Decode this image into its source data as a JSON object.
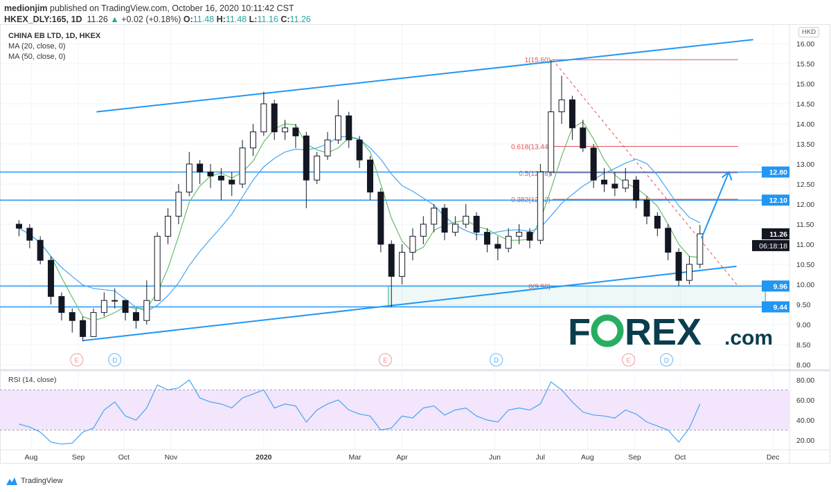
{
  "header": {
    "author": "medionjim",
    "published": "published on TradingView.com, October 16, 2020 10:11:42 CST",
    "symbol": "HKEX_DLY:165, 1D",
    "last": "11.26",
    "change": "+0.02 (+0.18%)",
    "o_label": "O:",
    "o": "11.48",
    "h_label": "H:",
    "h": "11.48",
    "l_label": "L:",
    "l": "11.16",
    "c_label": "C:",
    "c": "11.26"
  },
  "legend": {
    "title": "CHINA EB LTD, 1D, HKEX",
    "ma20": "MA (20, close, 0)",
    "ma50": "MA (50, close, 0)",
    "rsi": "RSI (14, close)"
  },
  "currency": "HKD",
  "footer": {
    "brand": "TradingView"
  },
  "watermark": {
    "brand": "FOREX.com"
  },
  "colors": {
    "up": "#26a69a",
    "candle": "#131722",
    "ma20": "#66bb6a",
    "ma50": "#42a5f5",
    "trendline": "#2196f3",
    "fib": "#e05050",
    "rsi": "#42a5f5",
    "rsi_band": "#f3e5fc",
    "earnings": "#ef9a9a",
    "dividend": "#64b5f6",
    "logo_dark": "#0b3d4c",
    "logo_green": "#27ae60"
  },
  "chart_data": [
    {
      "type": "candlestick",
      "title": "CHINA EB LTD, 1D, HKEX",
      "ylim": [
        8.0,
        16.0
      ],
      "y_ticks": [
        "16.00",
        "15.50",
        "15.00",
        "14.50",
        "14.00",
        "13.50",
        "13.00",
        "12.50",
        "12.00",
        "11.50",
        "11.00",
        "10.50",
        "10.00",
        "9.50",
        "9.00",
        "8.50",
        "8.00"
      ],
      "x_ticks": [
        {
          "label": "Aug",
          "date": "2019-08-01"
        },
        {
          "label": "Sep",
          "date": "2019-09-01"
        },
        {
          "label": "Oct",
          "date": "2019-10-01"
        },
        {
          "label": "Nov",
          "date": "2019-11-01"
        },
        {
          "label": "2020",
          "date": "2020-01-01"
        },
        {
          "label": "Mar",
          "date": "2020-03-01"
        },
        {
          "label": "Apr",
          "date": "2020-04-01"
        },
        {
          "label": "Jun",
          "date": "2020-06-01"
        },
        {
          "label": "Jul",
          "date": "2020-07-01"
        },
        {
          "label": "Aug",
          "date": "2020-08-01"
        },
        {
          "label": "Sep",
          "date": "2020-09-01"
        },
        {
          "label": "Oct",
          "date": "2020-10-01"
        },
        {
          "label": "Dec",
          "date": "2020-12-01"
        }
      ],
      "candles_columns": [
        "date",
        "open",
        "high",
        "low",
        "close"
      ],
      "candles": [
        [
          "2019-07-22",
          11.5,
          11.6,
          11.2,
          11.4
        ],
        [
          "2019-07-29",
          11.4,
          11.5,
          10.9,
          11.1
        ],
        [
          "2019-08-05",
          11.1,
          11.2,
          10.5,
          10.6
        ],
        [
          "2019-08-12",
          10.6,
          10.7,
          9.5,
          9.7
        ],
        [
          "2019-08-19",
          9.7,
          9.8,
          9.1,
          9.3
        ],
        [
          "2019-08-26",
          9.3,
          9.4,
          8.8,
          9.1
        ],
        [
          "2019-09-02",
          9.1,
          9.2,
          8.58,
          8.7
        ],
        [
          "2019-09-09",
          8.7,
          9.4,
          8.7,
          9.3
        ],
        [
          "2019-09-16",
          9.3,
          9.8,
          9.2,
          9.6
        ],
        [
          "2019-09-23",
          9.6,
          9.9,
          9.4,
          9.6
        ],
        [
          "2019-09-30",
          9.6,
          9.6,
          9.1,
          9.3
        ],
        [
          "2019-10-07",
          9.3,
          9.4,
          8.9,
          9.1
        ],
        [
          "2019-10-14",
          9.1,
          10.1,
          9.0,
          9.6
        ],
        [
          "2019-10-21",
          9.6,
          11.3,
          9.6,
          11.2
        ],
        [
          "2019-10-28",
          11.2,
          11.9,
          11.0,
          11.7
        ],
        [
          "2019-11-04",
          11.7,
          12.5,
          11.5,
          12.3
        ],
        [
          "2019-11-11",
          12.3,
          13.3,
          12.2,
          13.0
        ],
        [
          "2019-11-18",
          13.0,
          13.1,
          12.5,
          12.8
        ],
        [
          "2019-11-25",
          12.8,
          13.0,
          12.4,
          12.7
        ],
        [
          "2019-12-02",
          12.7,
          12.9,
          12.1,
          12.6
        ],
        [
          "2019-12-09",
          12.6,
          12.8,
          12.2,
          12.5
        ],
        [
          "2019-12-16",
          12.5,
          13.6,
          12.4,
          13.4
        ],
        [
          "2019-12-23",
          13.4,
          14.0,
          13.2,
          13.8
        ],
        [
          "2019-12-30",
          13.8,
          14.8,
          13.7,
          14.5
        ],
        [
          "2020-01-06",
          14.5,
          14.6,
          13.6,
          13.8
        ],
        [
          "2020-01-13",
          13.8,
          14.1,
          13.6,
          13.9
        ],
        [
          "2020-01-20",
          13.9,
          14.0,
          13.4,
          13.7
        ],
        [
          "2020-01-27",
          13.7,
          13.8,
          11.9,
          12.6
        ],
        [
          "2020-02-03",
          12.6,
          13.3,
          12.5,
          13.2
        ],
        [
          "2020-02-10",
          13.2,
          13.8,
          13.1,
          13.6
        ],
        [
          "2020-02-17",
          13.6,
          14.6,
          13.5,
          14.2
        ],
        [
          "2020-02-24",
          14.2,
          14.3,
          13.4,
          13.6
        ],
        [
          "2020-03-02",
          13.6,
          13.7,
          12.9,
          13.1
        ],
        [
          "2020-03-09",
          13.1,
          13.2,
          12.1,
          12.3
        ],
        [
          "2020-03-16",
          12.3,
          12.4,
          10.8,
          11.0
        ],
        [
          "2020-03-23",
          11.0,
          11.1,
          9.44,
          10.2
        ],
        [
          "2020-03-30",
          10.2,
          11.0,
          10.0,
          10.8
        ],
        [
          "2020-04-06",
          10.8,
          11.4,
          10.6,
          11.2
        ],
        [
          "2020-04-13",
          11.2,
          11.7,
          11.0,
          11.5
        ],
        [
          "2020-04-20",
          11.5,
          12.0,
          11.3,
          11.9
        ],
        [
          "2020-04-27",
          11.9,
          12.0,
          11.1,
          11.3
        ],
        [
          "2020-05-04",
          11.3,
          11.7,
          11.2,
          11.5
        ],
        [
          "2020-05-11",
          11.5,
          12.0,
          11.4,
          11.7
        ],
        [
          "2020-05-18",
          11.7,
          11.8,
          11.1,
          11.3
        ],
        [
          "2020-05-25",
          11.3,
          11.4,
          10.8,
          11.0
        ],
        [
          "2020-06-01",
          11.0,
          11.2,
          10.6,
          10.9
        ],
        [
          "2020-06-08",
          10.9,
          11.4,
          10.8,
          11.2
        ],
        [
          "2020-06-15",
          11.2,
          11.5,
          11.0,
          11.3
        ],
        [
          "2020-06-22",
          11.3,
          11.4,
          10.9,
          11.1
        ],
        [
          "2020-06-29",
          11.1,
          13.0,
          11.0,
          12.8
        ],
        [
          "2020-07-06",
          12.8,
          15.6,
          12.7,
          14.3
        ],
        [
          "2020-07-13",
          14.3,
          15.2,
          14.0,
          14.6
        ],
        [
          "2020-07-20",
          14.6,
          14.7,
          13.6,
          13.9
        ],
        [
          "2020-07-27",
          13.9,
          14.1,
          13.3,
          13.4
        ],
        [
          "2020-08-03",
          13.4,
          13.5,
          12.4,
          12.6
        ],
        [
          "2020-08-10",
          12.6,
          12.9,
          12.3,
          12.5
        ],
        [
          "2020-08-17",
          12.5,
          12.8,
          12.2,
          12.4
        ],
        [
          "2020-08-24",
          12.4,
          12.9,
          12.3,
          12.6
        ],
        [
          "2020-08-31",
          12.6,
          12.7,
          11.9,
          12.1
        ],
        [
          "2020-09-07",
          12.1,
          12.2,
          11.5,
          11.7
        ],
        [
          "2020-09-14",
          11.7,
          11.8,
          11.2,
          11.4
        ],
        [
          "2020-09-21",
          11.4,
          11.5,
          10.6,
          10.8
        ],
        [
          "2020-09-28",
          10.8,
          10.9,
          9.96,
          10.1
        ],
        [
          "2020-10-05",
          10.1,
          10.7,
          10.0,
          10.5
        ],
        [
          "2020-10-12",
          10.5,
          11.48,
          10.4,
          11.26
        ]
      ],
      "moving_averages": [
        {
          "name": "MA (20, close, 0)",
          "period": 20
        },
        {
          "name": "MA (50, close, 0)",
          "period": 50
        }
      ],
      "price_labels": [
        {
          "value": "12.80",
          "kind": "line"
        },
        {
          "value": "12.10",
          "kind": "line"
        },
        {
          "value": "11.26",
          "kind": "last"
        },
        {
          "value": "9.96",
          "kind": "line"
        },
        {
          "value": "9.44",
          "kind": "line"
        }
      ],
      "countdown": "06:18:18",
      "horizontal_lines": [
        12.8,
        12.1,
        9.96,
        9.44
      ],
      "support_box": {
        "from": "2020-03-23",
        "to": "2020-11-26",
        "low": 9.44,
        "high": 9.96
      },
      "trend_lines": [
        {
          "from": [
            "2019-09-13",
            14.3
          ],
          "to": [
            "2020-11-18",
            16.1
          ]
        },
        {
          "from": [
            "2019-09-04",
            8.6
          ],
          "to": [
            "2020-11-07",
            10.45
          ]
        }
      ],
      "fib_retracement": {
        "from": [
          "2020-07-09",
          15.6
        ],
        "to": [
          "2020-11-08",
          9.96
        ],
        "levels": [
          {
            "label": "1(15.60)",
            "value": 15.6
          },
          {
            "label": "0.618(13.44)",
            "value": 13.44
          },
          {
            "label": "0.5(12.78)",
            "value": 12.78
          },
          {
            "label": "0.382(12.12)",
            "value": 12.12
          },
          {
            "label": "0(9.96)",
            "value": 9.96
          }
        ]
      },
      "arrow": {
        "from": [
          "2020-10-15",
          11.15
        ],
        "to": [
          "2020-11-02",
          12.8
        ]
      },
      "events": [
        {
          "type": "E",
          "date": "2019-08-31"
        },
        {
          "type": "D",
          "date": "2019-09-25"
        },
        {
          "type": "E",
          "date": "2020-03-21"
        },
        {
          "type": "D",
          "date": "2020-06-02"
        },
        {
          "type": "E",
          "date": "2020-08-28"
        },
        {
          "type": "D",
          "date": "2020-09-22"
        }
      ]
    },
    {
      "type": "line",
      "title": "RSI (14, close)",
      "ylim": [
        10,
        88
      ],
      "y_ticks": [
        "80.00",
        "60.00",
        "40.00",
        "20.00"
      ],
      "band": [
        30,
        70
      ],
      "values": [
        36,
        33,
        28,
        18,
        16,
        17,
        28,
        32,
        50,
        58,
        44,
        40,
        52,
        75,
        70,
        72,
        80,
        62,
        58,
        56,
        52,
        62,
        66,
        70,
        52,
        56,
        54,
        38,
        50,
        56,
        60,
        50,
        46,
        44,
        30,
        32,
        44,
        42,
        52,
        54,
        45,
        50,
        52,
        44,
        40,
        38,
        50,
        52,
        50,
        56,
        78,
        70,
        58,
        48,
        45,
        44,
        42,
        50,
        46,
        38,
        34,
        30,
        18,
        32,
        56
      ]
    }
  ]
}
